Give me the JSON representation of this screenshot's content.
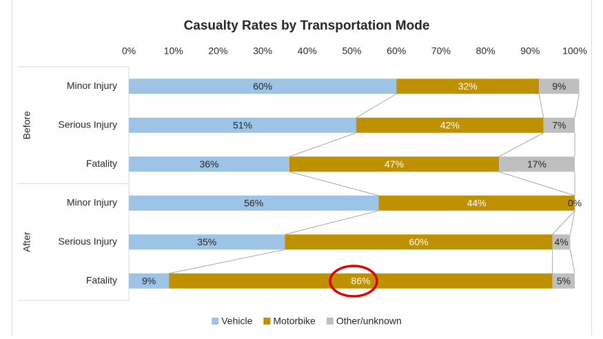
{
  "chart_data": {
    "type": "stacked-bar-horizontal",
    "title": "Casualty Rates by Transportation Mode",
    "groups": [
      "Before",
      "After"
    ],
    "categories": [
      "Minor Injury",
      "Serious Injury",
      "Fatality",
      "Minor Injury",
      "Serious Injury",
      "Fatality"
    ],
    "series": [
      {
        "name": "Vehicle",
        "color": "#9dc3e6",
        "values": [
          60,
          51,
          36,
          56,
          35,
          9
        ],
        "value_labels": [
          "60%",
          "51%",
          "36%",
          "56%",
          "35%",
          "9%"
        ]
      },
      {
        "name": "Motorbike",
        "color": "#bf9000",
        "values": [
          32,
          42,
          47,
          44,
          60,
          86
        ],
        "value_labels": [
          "32%",
          "42%",
          "47%",
          "44%",
          "60%",
          "86%"
        ]
      },
      {
        "name": "Other/unknown",
        "color": "#bfbfbf",
        "values": [
          9,
          7,
          17,
          0,
          4,
          5
        ],
        "value_labels": [
          "9%",
          "7%",
          "17%",
          "0%",
          "4%",
          "5%"
        ]
      }
    ],
    "xlim": [
      0,
      100
    ],
    "xticks": [
      {
        "value": 0,
        "label": "0%"
      },
      {
        "value": 10,
        "label": "10%"
      },
      {
        "value": 20,
        "label": "20%"
      },
      {
        "value": 30,
        "label": "30%"
      },
      {
        "value": 40,
        "label": "40%"
      },
      {
        "value": 50,
        "label": "50%"
      },
      {
        "value": 60,
        "label": "60%"
      },
      {
        "value": 70,
        "label": "70%"
      },
      {
        "value": 80,
        "label": "80%"
      },
      {
        "value": 90,
        "label": "90%"
      },
      {
        "value": 100,
        "label": "100%"
      }
    ],
    "legend": "bottom",
    "series_lines": true
  }
}
